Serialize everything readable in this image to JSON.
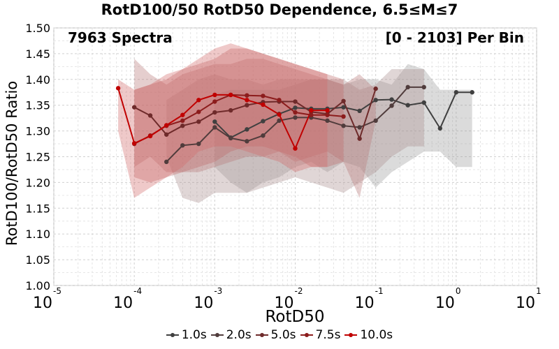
{
  "chart_data": {
    "type": "line",
    "title": "RotD100/50 RotD50 Dependence, 6.5≤M≤7",
    "xlabel": "RotD50",
    "ylabel": "RotD100/RotD50 Ratio",
    "x_scale": "log",
    "xlim": [
      1e-05,
      10
    ],
    "ylim": [
      1.0,
      1.5
    ],
    "grid": true,
    "legend_position": "bottom",
    "annotations": {
      "left": "7963 Spectra",
      "right": "[0 - 2103] Per Bin"
    },
    "x_tick_labels": [
      {
        "base": "10",
        "exp": "-5"
      },
      {
        "base": "10",
        "exp": "-4"
      },
      {
        "base": "10",
        "exp": "-3"
      },
      {
        "base": "10",
        "exp": "-2"
      },
      {
        "base": "10",
        "exp": "-1"
      },
      {
        "base": "10",
        "exp": "0"
      },
      {
        "base": "10",
        "exp": "1"
      }
    ],
    "y_tick_labels": [
      "1.00",
      "1.05",
      "1.10",
      "1.15",
      "1.20",
      "1.25",
      "1.30",
      "1.35",
      "1.40",
      "1.45",
      "1.50"
    ],
    "series": [
      {
        "name": "1.0s",
        "color": "#404040",
        "band_color": "#9a9a9a",
        "x": [
          0.001,
          0.00158,
          0.00251,
          0.00398,
          0.00631,
          0.01,
          0.0158,
          0.0251,
          0.0398,
          0.0631,
          0.1,
          0.158,
          0.251,
          0.398,
          0.631,
          1.0,
          1.58
        ],
        "y": [
          1.318,
          1.287,
          1.303,
          1.319,
          1.333,
          1.345,
          1.343,
          1.343,
          1.346,
          1.339,
          1.36,
          1.361,
          1.35,
          1.355,
          1.305,
          1.375,
          1.375
        ],
        "lower": [
          1.23,
          1.2,
          1.18,
          1.2,
          1.21,
          1.23,
          1.24,
          1.22,
          1.24,
          1.23,
          1.19,
          1.22,
          1.24,
          1.26,
          1.26,
          1.23,
          1.23
        ],
        "upper": [
          1.37,
          1.38,
          1.38,
          1.38,
          1.38,
          1.39,
          1.4,
          1.4,
          1.39,
          1.4,
          1.4,
          1.39,
          1.43,
          1.42,
          1.38,
          1.38,
          1.38
        ]
      },
      {
        "name": "2.0s",
        "color": "#503c3c",
        "band_color": "#a88c8c",
        "x": [
          0.000251,
          0.000398,
          0.000631,
          0.001,
          0.00158,
          0.00251,
          0.00398,
          0.00631,
          0.01,
          0.0158,
          0.0251,
          0.0398,
          0.0631,
          0.1,
          0.158,
          0.251,
          0.398
        ],
        "y": [
          1.24,
          1.272,
          1.275,
          1.307,
          1.286,
          1.28,
          1.291,
          1.32,
          1.326,
          1.326,
          1.32,
          1.31,
          1.307,
          1.32,
          1.349,
          1.385,
          1.385
        ],
        "lower": [
          1.25,
          1.17,
          1.16,
          1.18,
          1.18,
          1.18,
          1.19,
          1.2,
          1.21,
          1.2,
          1.19,
          1.18,
          1.2,
          1.22,
          1.25,
          1.27,
          1.27
        ],
        "upper": [
          1.36,
          1.38,
          1.4,
          1.41,
          1.4,
          1.4,
          1.39,
          1.4,
          1.4,
          1.4,
          1.4,
          1.4,
          1.38,
          1.39,
          1.42,
          1.42,
          1.42
        ]
      },
      {
        "name": "5.0s",
        "color": "#6e2a2a",
        "band_color": "#b77878",
        "x": [
          0.0001,
          0.000158,
          0.000251,
          0.000398,
          0.000631,
          0.001,
          0.00158,
          0.00251,
          0.00398,
          0.00631,
          0.01,
          0.0158,
          0.0251,
          0.0398,
          0.0631,
          0.1
        ],
        "y": [
          1.346,
          1.33,
          1.293,
          1.31,
          1.318,
          1.336,
          1.34,
          1.35,
          1.356,
          1.357,
          1.357,
          1.337,
          1.333,
          1.358,
          1.285,
          1.382
        ],
        "lower": [
          1.23,
          1.25,
          1.22,
          1.22,
          1.22,
          1.23,
          1.24,
          1.25,
          1.25,
          1.26,
          1.24,
          1.25,
          1.26,
          1.24,
          1.17,
          1.32
        ],
        "upper": [
          1.44,
          1.41,
          1.39,
          1.41,
          1.42,
          1.43,
          1.43,
          1.44,
          1.44,
          1.43,
          1.42,
          1.41,
          1.4,
          1.39,
          1.41,
          1.38
        ]
      },
      {
        "name": "7.5s",
        "color": "#8c1c1c",
        "band_color": "#c06868",
        "x": [
          0.0001,
          0.000158,
          0.000251,
          0.000398,
          0.000631,
          0.001,
          0.00158,
          0.00251,
          0.00398,
          0.00631,
          0.01,
          0.0158,
          0.0251,
          0.0398
        ],
        "y": [
          1.275,
          1.291,
          1.31,
          1.32,
          1.337,
          1.357,
          1.37,
          1.369,
          1.368,
          1.36,
          1.336,
          1.331,
          1.331,
          1.328
        ],
        "lower": [
          1.21,
          1.2,
          1.21,
          1.22,
          1.23,
          1.24,
          1.26,
          1.27,
          1.27,
          1.26,
          1.25,
          1.23,
          1.23,
          1.24
        ],
        "upper": [
          1.38,
          1.39,
          1.4,
          1.42,
          1.43,
          1.44,
          1.46,
          1.46,
          1.45,
          1.44,
          1.43,
          1.42,
          1.41,
          1.4
        ]
      },
      {
        "name": "10.0s",
        "color": "#c00000",
        "band_color": "#d46a6a",
        "x": [
          6.31e-05,
          0.0001,
          0.000158,
          0.000251,
          0.000398,
          0.000631,
          0.001,
          0.00158,
          0.00251,
          0.00398,
          0.00631,
          0.01,
          0.0158,
          0.0251
        ],
        "y": [
          1.383,
          1.276,
          1.29,
          1.311,
          1.331,
          1.36,
          1.37,
          1.37,
          1.36,
          1.351,
          1.332,
          1.266,
          1.34,
          1.34
        ],
        "lower": [
          1.3,
          1.17,
          1.19,
          1.21,
          1.23,
          1.26,
          1.27,
          1.27,
          1.26,
          1.25,
          1.24,
          1.22,
          1.23,
          1.23
        ],
        "upper": [
          1.4,
          1.38,
          1.39,
          1.41,
          1.42,
          1.44,
          1.46,
          1.47,
          1.46,
          1.45,
          1.44,
          1.43,
          1.42,
          1.41
        ]
      }
    ]
  }
}
